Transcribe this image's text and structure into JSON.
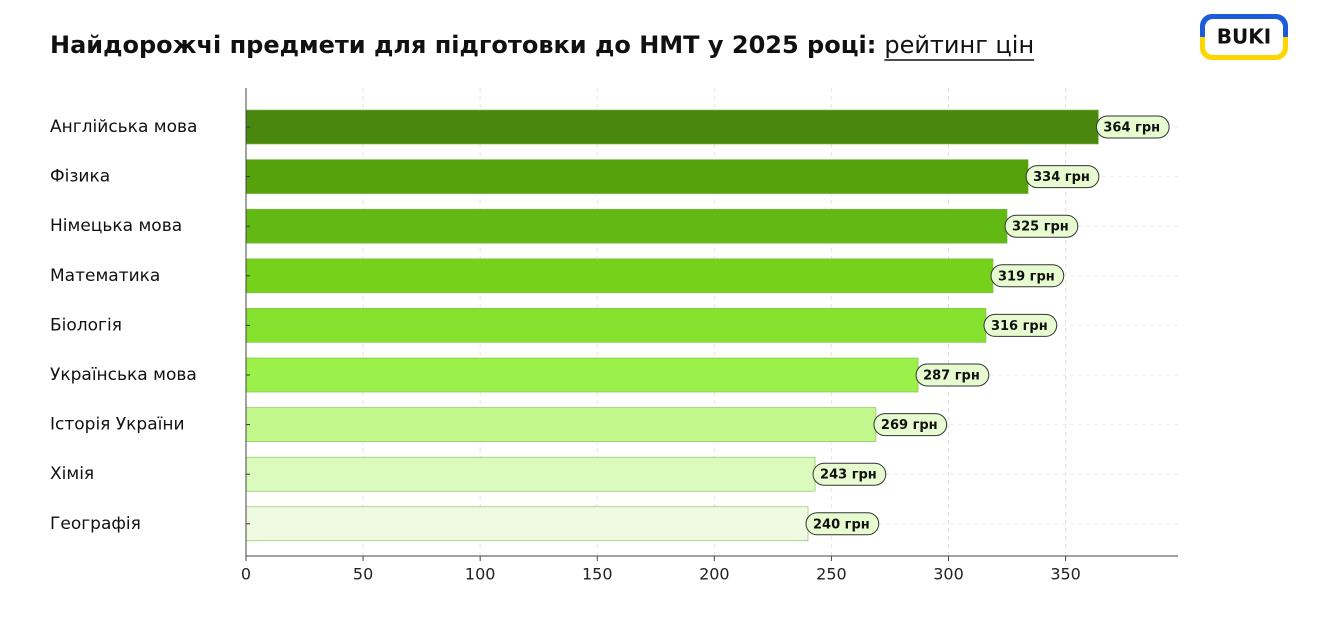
{
  "logo": "BUKI",
  "chart_data": {
    "type": "bar",
    "orientation": "horizontal",
    "title": "Найдорожчі предмети для підготовки до НМТ у 2025 році:",
    "title_highlight": "рейтинг цін",
    "categories": [
      "Англійська мова",
      "Фізика",
      "Німецька мова",
      "Математика",
      "Біологія",
      "Українська мова",
      "Історія України",
      "Хімія",
      "Географія"
    ],
    "values": [
      364,
      334,
      325,
      319,
      316,
      287,
      269,
      243,
      240
    ],
    "value_labels": [
      "364 грн",
      "334 грн",
      "325 грн",
      "319 грн",
      "316 грн",
      "287 грн",
      "269 грн",
      "243 грн",
      "240 грн"
    ],
    "colors": [
      "#4a870e",
      "#55a20c",
      "#62b914",
      "#76d11a",
      "#86e02e",
      "#9cf04a",
      "#c2f78c",
      "#dafbbb",
      "#eefbe2"
    ],
    "xlim": [
      0,
      398
    ],
    "xticks": [
      0,
      50,
      100,
      150,
      200,
      250,
      300,
      350
    ],
    "grid": true
  }
}
